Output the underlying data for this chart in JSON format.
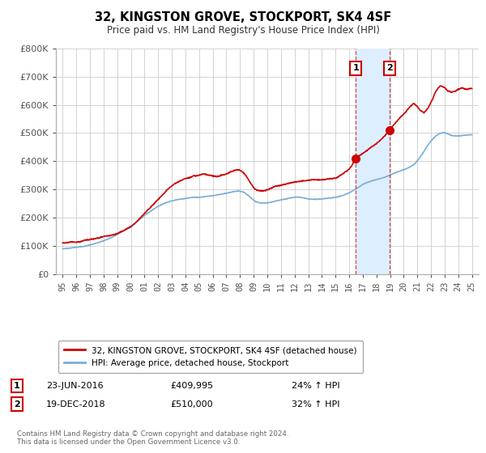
{
  "title": "32, KINGSTON GROVE, STOCKPORT, SK4 4SF",
  "subtitle": "Price paid vs. HM Land Registry's House Price Index (HPI)",
  "xlim": [
    1994.5,
    2025.5
  ],
  "ylim": [
    0,
    800000
  ],
  "yticks": [
    0,
    100000,
    200000,
    300000,
    400000,
    500000,
    600000,
    700000,
    800000
  ],
  "ytick_labels": [
    "£0",
    "£100K",
    "£200K",
    "£300K",
    "£400K",
    "£500K",
    "£600K",
    "£700K",
    "£800K"
  ],
  "xticks": [
    1995,
    1996,
    1997,
    1998,
    1999,
    2000,
    2001,
    2002,
    2003,
    2004,
    2005,
    2006,
    2007,
    2008,
    2009,
    2010,
    2011,
    2012,
    2013,
    2014,
    2015,
    2016,
    2017,
    2018,
    2019,
    2020,
    2021,
    2022,
    2023,
    2024,
    2025
  ],
  "red_line_color": "#cc0000",
  "blue_line_color": "#7aadd4",
  "vspan_color": "#ddeeff",
  "marker1_x": 2016.48,
  "marker1_y": 409995,
  "marker2_x": 2018.96,
  "marker2_y": 510000,
  "vline1_x": 2016.48,
  "vline2_x": 2018.96,
  "legend_label_red": "32, KINGSTON GROVE, STOCKPORT, SK4 4SF (detached house)",
  "legend_label_blue": "HPI: Average price, detached house, Stockport",
  "annotation1_date": "23-JUN-2016",
  "annotation1_price": "£409,995",
  "annotation1_hpi": "24% ↑ HPI",
  "annotation2_date": "19-DEC-2018",
  "annotation2_price": "£510,000",
  "annotation2_hpi": "32% ↑ HPI",
  "footer1": "Contains HM Land Registry data © Crown copyright and database right 2024.",
  "footer2": "This data is licensed under the Open Government Licence v3.0.",
  "background_color": "#ffffff",
  "plot_bg_color": "#ffffff",
  "grid_color": "#cccccc"
}
